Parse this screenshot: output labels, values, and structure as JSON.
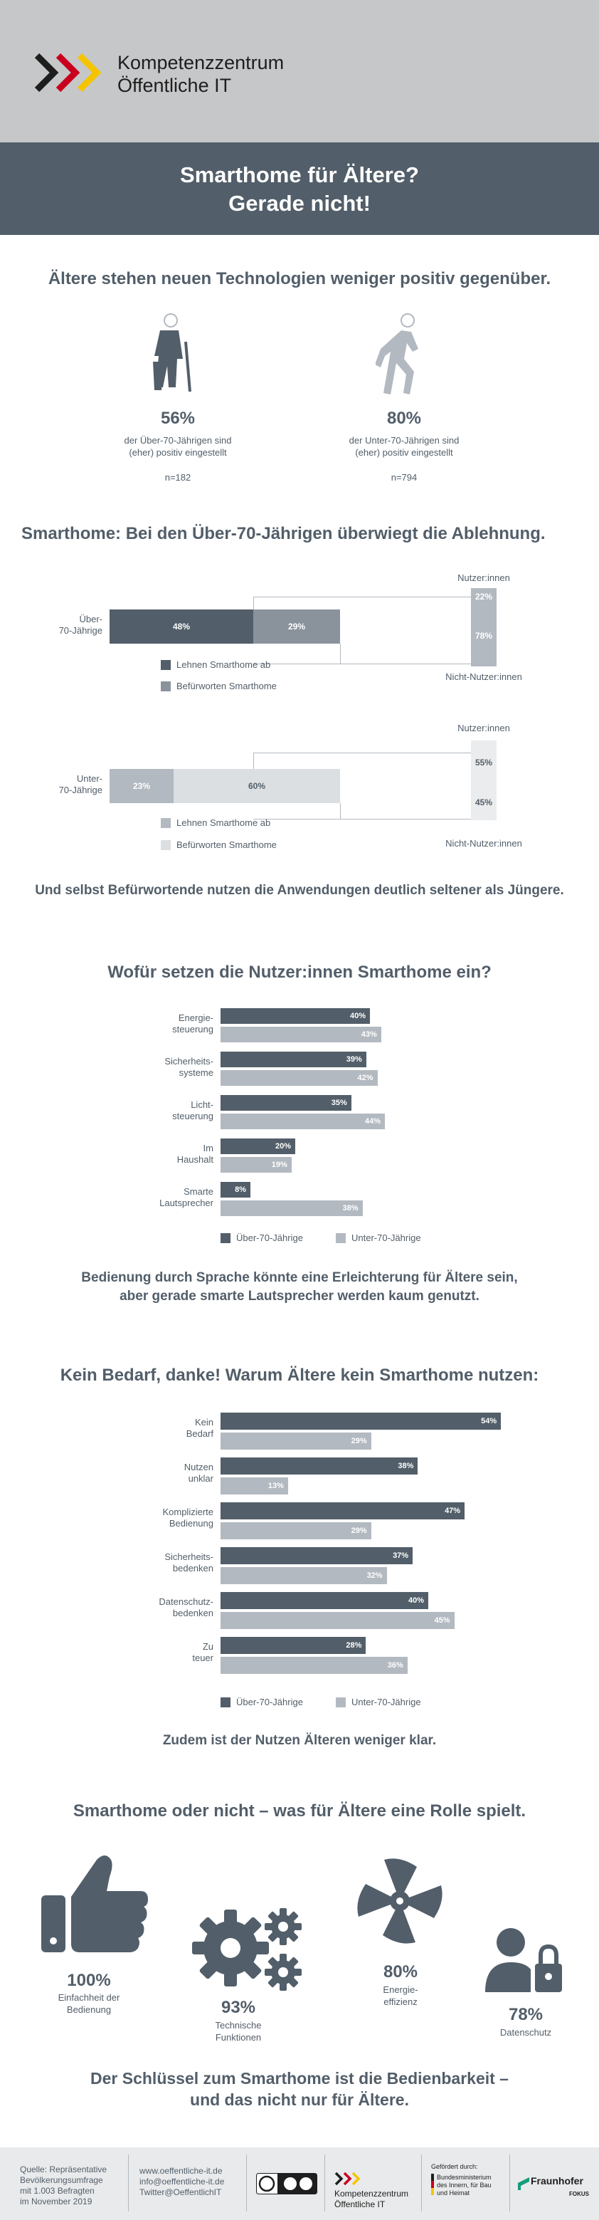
{
  "brand": {
    "line1": "Kompetenzzentrum",
    "line2": "Öffentliche IT"
  },
  "title": {
    "line1": "Smarthome für Ältere?",
    "line2": "Gerade nicht!"
  },
  "s1": {
    "heading": "Ältere stehen neuen Technologien weniger positiv gegenüber.",
    "left": {
      "pct": "56%",
      "text1": "der Über-70-Jährigen sind",
      "text2": "(eher) positiv eingestellt",
      "n": "n=182"
    },
    "right": {
      "pct": "80%",
      "text1": "der Unter-70-Jährigen sind",
      "text2": "(eher) positiv eingestellt",
      "n": "n=794"
    }
  },
  "s2": {
    "heading": "Smarthome: Bei den Über-70-Jährigen überwiegt die Ablehnung.",
    "a": {
      "cat1": "Über-",
      "cat2": "70-Jährige",
      "v1": "48%",
      "v2": "29%",
      "top": "Nutzer:innen",
      "bot": "Nicht-Nutzer:innen",
      "u": "22%",
      "nu": "78%",
      "leg1": "Lehnen Smarthome ab",
      "leg2": "Befürworten Smarthome"
    },
    "b": {
      "cat1": "Unter-",
      "cat2": "70-Jährige",
      "v1": "23%",
      "v2": "60%",
      "top": "Nutzer:innen",
      "bot": "Nicht-Nutzer:innen",
      "u": "55%",
      "nu": "45%",
      "leg1": "Lehnen Smarthome ab",
      "leg2": "Befürworten Smarthome"
    },
    "note": "Und selbst Befürwortende nutzen die Anwendungen deutlich seltener als Jüngere."
  },
  "s3": {
    "heading": "Wofür setzen die Nutzer:innen Smarthome ein?",
    "leg1": "Über-70-Jährige",
    "leg2": "Unter-70-Jährige",
    "note1": "Bedienung durch Sprache könnte eine Erleichterung für Ältere sein,",
    "note2": "aber gerade smarte Lautsprecher werden kaum genutzt."
  },
  "s4": {
    "heading": "Kein Bedarf, danke! Warum Ältere kein Smarthome nutzen:",
    "leg1": "Über-70-Jährige",
    "leg2": "Unter-70-Jährige",
    "note": "Zudem ist der Nutzen Älteren weniger klar."
  },
  "s5": {
    "heading": "Smarthome oder nicht – was für Ältere eine Rolle spielt.",
    "i1": {
      "pct": "100%",
      "t1": "Einfachheit der",
      "t2": "Bedienung"
    },
    "i2": {
      "pct": "93%",
      "t1": "Technische",
      "t2": "Funktionen"
    },
    "i3": {
      "pct": "80%",
      "t1": "Energie-",
      "t2": "effizienz"
    },
    "i4": {
      "pct": "78%",
      "t1": "Datenschutz",
      "t2": ""
    },
    "key1": "Der Schlüssel zum Smarthome ist die Bedienbarkeit –",
    "key2": "und das nicht nur für Ältere."
  },
  "footer": {
    "src1": "Quelle: Repräsentative",
    "src2": "Bevölkerungsumfrage",
    "src3": "mit 1.003 Befragten",
    "src4": "im November 2019",
    "web": "www.oeffentliche-it.de",
    "mail": "info@oeffentliche-it.de",
    "tw": "Twitter@OeffentlichIT",
    "brand1": "Kompetenzzentrum",
    "brand2": "Öffentliche IT",
    "funded": "Gefördert durch:",
    "bmi1": "Bundesministerium",
    "bmi2": "des Innern, für Bau",
    "bmi3": "und Heimat",
    "fh": "Fraunhofer",
    "fh2": "FOKUS"
  },
  "colors": {
    "dark": "#525e69",
    "light": "#b3b9c0",
    "pale": "#dcdfe2",
    "accent_red": "#c8001e",
    "accent_yellow": "#f5c400"
  },
  "chart_data": [
    {
      "type": "bar",
      "title": "Wofür setzen die Nutzer:innen Smarthome ein?",
      "categories": [
        "Energie-steuerung",
        "Sicherheits-systeme",
        "Licht-steuerung",
        "Im Haushalt",
        "Smarte Lautsprecher"
      ],
      "series": [
        {
          "name": "Über-70-Jährige",
          "values": [
            40,
            39,
            35,
            20,
            8
          ]
        },
        {
          "name": "Unter-70-Jährige",
          "values": [
            43,
            42,
            44,
            19,
            38
          ]
        }
      ],
      "unit": "%"
    },
    {
      "type": "bar",
      "title": "Kein Bedarf, danke! Warum Ältere kein Smarthome nutzen:",
      "categories": [
        "Kein Bedarf",
        "Nutzen unklar",
        "Komplizierte Bedienung",
        "Sicherheits-bedenken",
        "Datenschutz-bedenken",
        "Zu teuer"
      ],
      "series": [
        {
          "name": "Über-70-Jährige",
          "values": [
            54,
            38,
            47,
            37,
            40,
            28
          ]
        },
        {
          "name": "Unter-70-Jährige",
          "values": [
            29,
            13,
            29,
            32,
            45,
            36
          ]
        }
      ],
      "unit": "%"
    }
  ]
}
